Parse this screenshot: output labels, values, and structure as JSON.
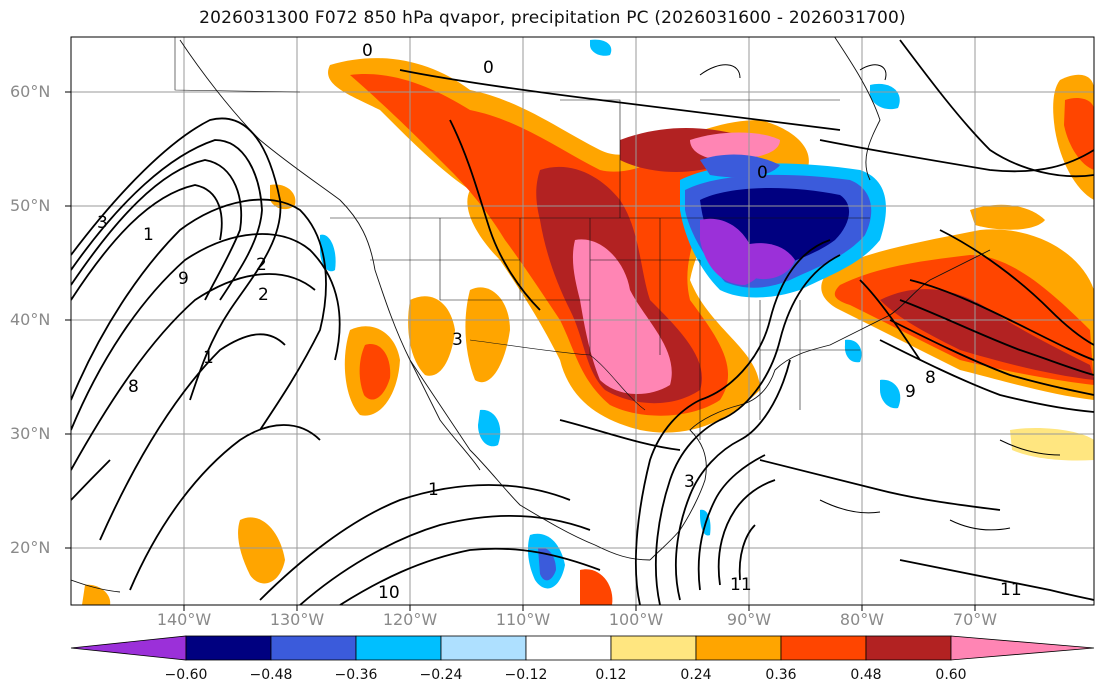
{
  "title": "2026031300 F072 850 hPa qvapor, precipitation PC (2026031600 - 2026031700)",
  "latitude_labels": [
    "60°N",
    "50°N",
    "40°N",
    "30°N",
    "20°N"
  ],
  "longitude_labels": [
    "140°W",
    "130°W",
    "120°W",
    "110°W",
    "100°W",
    "90°W",
    "80°W",
    "70°W"
  ],
  "colorbar": {
    "ticks": [
      "−0.60",
      "−0.48",
      "−0.36",
      "−0.24",
      "−0.12",
      "0.12",
      "0.24",
      "0.36",
      "0.48",
      "0.60"
    ],
    "colors": [
      "#9b30d9",
      "#000080",
      "#3b5bdb",
      "#00bfff",
      "#aee0ff",
      "#ffffff",
      "#ffe680",
      "#ffa500",
      "#ff4500",
      "#b22222",
      "#ff85b4"
    ]
  },
  "contour_labels": [
    "0",
    "0",
    "0",
    "1",
    "1",
    "1",
    "2",
    "2",
    "3",
    "3",
    "3",
    "8",
    "8",
    "9",
    "9",
    "10",
    "11",
    "11"
  ]
}
